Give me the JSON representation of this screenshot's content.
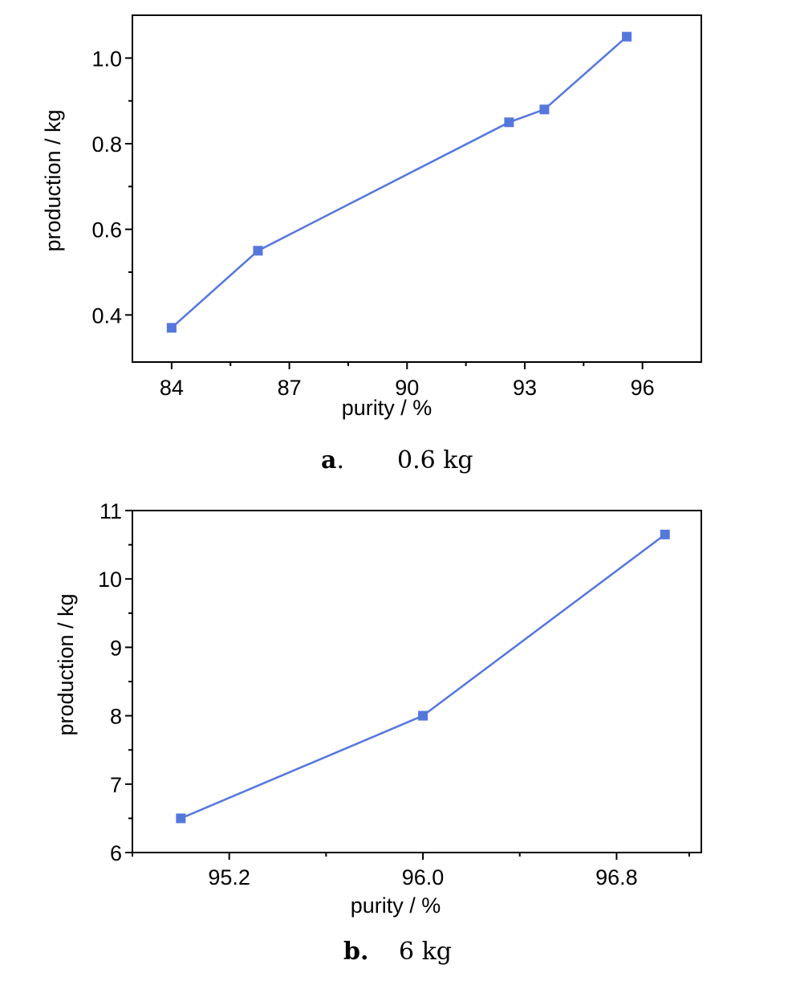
{
  "chart_data": [
    {
      "type": "line",
      "xlabel": "purity / %",
      "ylabel": "production / kg",
      "xlim": [
        83,
        97.5
      ],
      "ylim": [
        0.29,
        1.1
      ],
      "xticks": [
        84,
        87,
        90,
        93,
        96
      ],
      "xtick_labels": [
        "84",
        "87",
        "90",
        "93",
        "96"
      ],
      "x_minor_ticks": [
        85.5,
        88.5,
        91.5,
        94.5
      ],
      "yticks": [
        0.4,
        0.6,
        0.8,
        1.0
      ],
      "ytick_labels": [
        "0.4",
        "0.6",
        "0.8",
        "1.0"
      ],
      "y_minor_ticks": [
        0.5,
        0.7,
        0.9
      ],
      "color": "#5577dd",
      "marker": "square",
      "series": [
        {
          "x": [
            84.0,
            86.2,
            92.6,
            93.5,
            95.6
          ],
          "y": [
            0.37,
            0.55,
            0.85,
            0.88,
            1.05
          ]
        }
      ],
      "caption_letter": "a",
      "caption_sep": ".",
      "caption_text": "0.6 kg"
    },
    {
      "type": "line",
      "xlabel": "purity / %",
      "ylabel": "production / kg",
      "xlim": [
        94.8,
        97.15
      ],
      "ylim": [
        6,
        11
      ],
      "xticks": [
        95.2,
        96.0,
        96.8
      ],
      "xtick_labels": [
        "95.2",
        "96.0",
        "96.8"
      ],
      "x_minor_ticks": [
        94.8,
        95.6,
        96.4,
        97.1
      ],
      "yticks": [
        6,
        7,
        8,
        9,
        10,
        11
      ],
      "ytick_labels": [
        "6",
        "7",
        "8",
        "9",
        "10",
        "11"
      ],
      "y_minor_ticks": [
        6.5,
        7.5,
        8.5,
        9.5,
        10.5
      ],
      "color": "#5577dd",
      "marker": "square",
      "series": [
        {
          "x": [
            95.0,
            96.0,
            97.0
          ],
          "y": [
            6.5,
            8.0,
            10.65
          ]
        }
      ],
      "caption_letter": "b.",
      "caption_sep": "",
      "caption_text": "6 kg"
    }
  ]
}
